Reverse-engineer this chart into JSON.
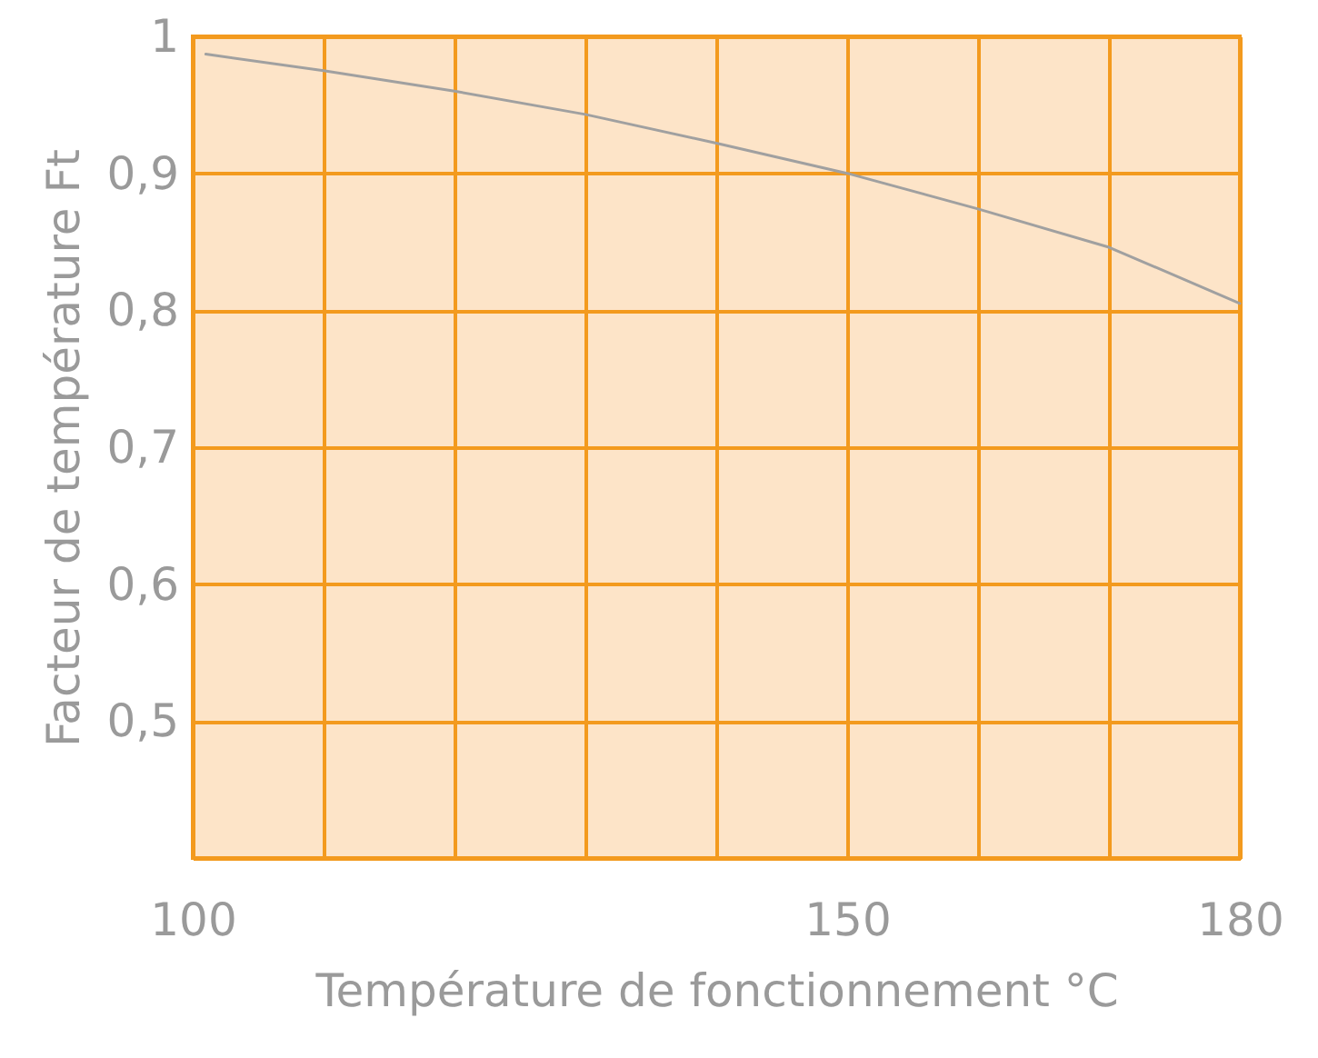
{
  "chart_data": {
    "type": "line",
    "xlabel": "Température de fonctionnement °C",
    "ylabel": "Facteur de température Ft",
    "x": [
      101,
      110,
      120,
      130,
      140,
      150,
      160,
      170,
      180
    ],
    "series": [
      {
        "color": "#a0a0a0",
        "values": [
          0.987,
          0.975,
          0.96,
          0.943,
          0.922,
          0.9,
          0.874,
          0.846,
          0.805
        ]
      }
    ],
    "xlim": [
      100,
      180
    ],
    "xticks": [
      100,
      {
        "value": 110,
        "label": null
      },
      {
        "value": 120,
        "label": null
      },
      {
        "value": 130,
        "label": null
      },
      {
        "value": 140,
        "label": null
      },
      150,
      {
        "value": 160,
        "label": null
      },
      {
        "value": 170,
        "label": null
      },
      180
    ],
    "ylim": [
      0.4,
      1
    ],
    "yticks": [
      {
        "value": 0.4,
        "label": null
      },
      {
        "value": 0.5,
        "label": "0,5"
      },
      {
        "value": 0.6,
        "label": "0,6"
      },
      {
        "value": 0.7,
        "label": "0,7"
      },
      {
        "value": 0.8,
        "label": "0,8"
      },
      {
        "value": 0.9,
        "label": "0,9"
      },
      1
    ],
    "grid": true,
    "marker": "none",
    "line_style": "solid"
  }
}
